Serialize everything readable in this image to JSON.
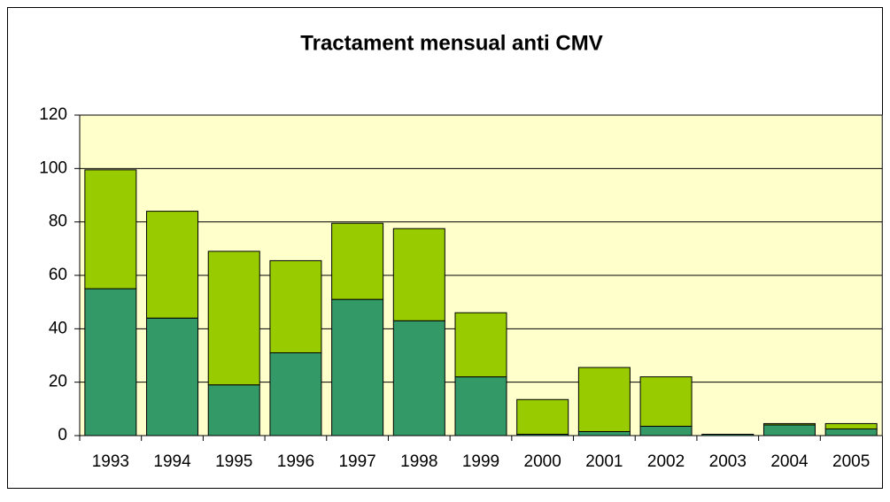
{
  "chart_data": {
    "type": "stacked_bar",
    "title": "Tractament mensual anti CMV",
    "categories": [
      "1993",
      "1994",
      "1995",
      "1996",
      "1997",
      "1998",
      "1999",
      "2000",
      "2001",
      "2002",
      "2003",
      "2004",
      "2005"
    ],
    "series": [
      {
        "color": "#339966",
        "values": [
          55,
          44,
          19,
          31,
          51,
          43,
          22,
          0.5,
          1.5,
          3.5,
          0.5,
          4,
          2.5
        ]
      },
      {
        "color": "#99cc00",
        "values": [
          44.5,
          40,
          50,
          34.5,
          28.5,
          34.5,
          24,
          13,
          24,
          18.5,
          0,
          0.5,
          2
        ]
      }
    ],
    "ylim": [
      0,
      120
    ],
    "yticks": [
      0,
      20,
      40,
      60,
      80,
      100,
      120
    ],
    "grid": true,
    "background": "#ffffcc"
  }
}
